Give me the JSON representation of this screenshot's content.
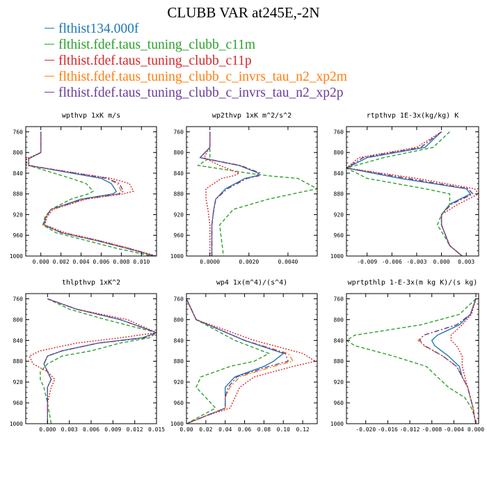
{
  "title": "CLUBB VAR at245E,-2N",
  "legend": [
    {
      "label": "flthist134.000f",
      "color": "#1f77b4"
    },
    {
      "label": "flthist.fdef.taus_tuning_clubb_c11m",
      "color": "#2ca02c"
    },
    {
      "label": "flthist.fdef.taus_tuning_clubb_c11p",
      "color": "#d62728"
    },
    {
      "label": "flthist.fdef.taus_tuning_clubb_c_invrs_tau_n2_xp2m",
      "color": "#ff7f0e"
    },
    {
      "label": "flthist.fdef.taus_tuning_clubb_c_invrs_tau_n2_xp2p",
      "color": "#6a3d9a"
    }
  ],
  "chart_data": [
    {
      "type": "line",
      "title": "wpthvp   1xK m/s",
      "xlim": [
        -0.0015,
        0.0115
      ],
      "ylim": [
        1000,
        750
      ],
      "xticks": [
        0.0,
        0.002,
        0.004,
        0.006,
        0.008,
        0.01
      ],
      "xtick_labels": [
        "0.000",
        "0.002",
        "0.004",
        "0.006",
        "0.008",
        "0.010"
      ],
      "yticks": [
        760,
        800,
        840,
        880,
        920,
        960,
        1000
      ],
      "ytick_labels": [
        "760",
        "800",
        "840",
        "880",
        "920",
        "960",
        "1000"
      ],
      "y": [
        760,
        800,
        812,
        825,
        850,
        860,
        875,
        880,
        890,
        910,
        925,
        940,
        955,
        970,
        985,
        1000
      ],
      "series": [
        {
          "values": [
            0.0,
            0.0,
            -0.0012,
            -0.0012,
            0.006,
            0.007,
            0.0075,
            0.0072,
            0.004,
            0.001,
            0.0005,
            0.0003,
            0.002,
            0.0055,
            0.0085,
            0.0113
          ]
        },
        {
          "values": [
            0.0,
            0.0,
            -0.0012,
            -0.0012,
            0.003,
            0.0045,
            0.0052,
            0.0047,
            0.003,
            0.001,
            0.0004,
            0.0002,
            0.0015,
            0.0045,
            0.0075,
            0.011
          ]
        },
        {
          "values": [
            0.0,
            0.0,
            -0.0014,
            -0.0014,
            0.007,
            0.0088,
            0.0092,
            0.0082,
            0.0045,
            0.0012,
            0.0006,
            0.0004,
            0.0024,
            0.0058,
            0.0088,
            0.0115
          ]
        },
        {
          "values": [
            0.0,
            0.0,
            -0.0012,
            -0.0012,
            0.0065,
            0.0076,
            0.008,
            0.0077,
            0.0042,
            0.001,
            0.0005,
            0.0003,
            0.0021,
            0.0056,
            0.0086,
            0.0113
          ]
        },
        {
          "values": [
            0.0,
            0.0,
            -0.0012,
            -0.0012,
            0.0066,
            0.0078,
            0.0082,
            0.0078,
            0.0043,
            0.001,
            0.0005,
            0.0003,
            0.0021,
            0.0056,
            0.0086,
            0.0113
          ]
        }
      ]
    },
    {
      "type": "line",
      "title": "wp2thvp   1xK m^2/s^2",
      "xlim": [
        -0.0012,
        0.0055
      ],
      "ylim": [
        1000,
        750
      ],
      "xticks": [
        0.0,
        0.002,
        0.004
      ],
      "xtick_labels": [
        "0.0000",
        "0.0020",
        "0.0040"
      ],
      "yticks": [
        760,
        800,
        840,
        880,
        920,
        960,
        1000
      ],
      "ytick_labels": [
        "760",
        "800",
        "840",
        "880",
        "920",
        "960",
        "1000"
      ],
      "y": [
        760,
        790,
        810,
        825,
        840,
        845,
        850,
        870,
        890,
        910,
        940,
        970,
        1000
      ],
      "series": [
        {
          "values": [
            0.0,
            0.0,
            -0.0005,
            0.0015,
            0.0025,
            0.0024,
            0.0018,
            0.0008,
            0.0003,
            0.0002,
            0.0001,
            0.0001,
            0.0001
          ]
        },
        {
          "values": [
            0.0,
            0.0,
            0.0,
            -0.0006,
            0.002,
            0.003,
            0.0045,
            0.0055,
            0.003,
            0.0012,
            0.0005,
            0.0006,
            0.0007
          ]
        },
        {
          "values": [
            0.0,
            0.0,
            -0.0003,
            0.0005,
            0.0015,
            0.0012,
            0.0006,
            -0.0002,
            -0.0002,
            -0.0001,
            0.0,
            0.0,
            0.0
          ]
        },
        {
          "values": [
            0.0,
            0.0,
            -0.0005,
            0.0016,
            0.0026,
            0.0025,
            0.0019,
            0.0009,
            0.0003,
            0.0002,
            0.0001,
            0.0001,
            0.0001
          ]
        },
        {
          "values": [
            0.0,
            0.0,
            -0.0005,
            0.0015,
            0.0026,
            0.0025,
            0.0019,
            0.0009,
            0.0003,
            0.0002,
            0.0001,
            0.0001,
            0.0001
          ]
        }
      ]
    },
    {
      "type": "line",
      "title": "rtpthvp   1E-3x(kg/kg) K",
      "xlim": [
        -0.0115,
        0.0045
      ],
      "ylim": [
        1000,
        750
      ],
      "xticks": [
        -0.009,
        -0.006,
        -0.003,
        0.0,
        0.003
      ],
      "xtick_labels": [
        "-0.009",
        "-0.006",
        "-0.003",
        "0.000",
        "0.003"
      ],
      "yticks": [
        760,
        800,
        840,
        880,
        920,
        960,
        1000
      ],
      "ytick_labels": [
        "760",
        "800",
        "840",
        "880",
        "920",
        "960",
        "1000"
      ],
      "y": [
        760,
        790,
        810,
        830,
        850,
        870,
        880,
        900,
        920,
        940,
        960,
        980,
        1000
      ],
      "series": [
        {
          "values": [
            0.0,
            -0.002,
            -0.009,
            -0.0115,
            -0.005,
            0.003,
            0.0035,
            0.001,
            0.0,
            0.0,
            0.0005,
            0.001,
            0.0025
          ]
        },
        {
          "values": [
            0.001,
            -0.001,
            -0.007,
            -0.0115,
            -0.009,
            -0.002,
            0.001,
            0.001,
            0.0,
            -0.0005,
            0.0003,
            0.001,
            0.0025
          ]
        },
        {
          "values": [
            0.0,
            -0.003,
            -0.01,
            -0.0115,
            -0.003,
            0.004,
            0.0045,
            0.002,
            0.0,
            0.0,
            0.0005,
            0.001,
            0.0025
          ]
        },
        {
          "values": [
            0.0,
            -0.0025,
            -0.0095,
            -0.0115,
            -0.004,
            0.0032,
            0.0038,
            0.0012,
            0.0,
            0.0,
            0.0005,
            0.001,
            0.0025
          ]
        },
        {
          "values": [
            0.0,
            -0.0025,
            -0.0095,
            -0.0115,
            -0.0042,
            0.0032,
            0.0038,
            0.0012,
            0.0,
            0.0,
            0.0005,
            0.001,
            0.0025
          ]
        }
      ]
    },
    {
      "type": "line",
      "title": "thlpthvp   1xK^2",
      "xlim": [
        -0.003,
        0.015
      ],
      "ylim": [
        1000,
        750
      ],
      "xticks": [
        0.0,
        0.003,
        0.006,
        0.009,
        0.012,
        0.015
      ],
      "xtick_labels": [
        "0.000",
        "0.003",
        "0.006",
        "0.009",
        "0.012",
        "0.015"
      ],
      "yticks": [
        760,
        800,
        840,
        880,
        920,
        960,
        1000
      ],
      "ytick_labels": [
        "760",
        "800",
        "840",
        "880",
        "920",
        "960",
        "1000"
      ],
      "y": [
        760,
        780,
        800,
        825,
        835,
        845,
        860,
        870,
        885,
        900,
        915,
        930,
        960,
        1000
      ],
      "series": [
        {
          "values": [
            0.0,
            0.004,
            0.01,
            0.015,
            0.013,
            0.007,
            0.002,
            0.0,
            -0.0005,
            0.0,
            0.0005,
            0.0,
            0.0,
            0.0
          ]
        },
        {
          "values": [
            0.0,
            0.003,
            0.008,
            0.015,
            0.014,
            0.01,
            0.006,
            0.002,
            0.0,
            -0.001,
            -0.001,
            -0.0005,
            0.0,
            0.0005
          ]
        },
        {
          "values": [
            0.0,
            0.004,
            0.011,
            0.015,
            0.01,
            0.004,
            -0.001,
            -0.0025,
            -0.002,
            0.0,
            0.001,
            0.0005,
            0.0,
            0.0
          ]
        },
        {
          "values": [
            0.0,
            0.004,
            0.01,
            0.015,
            0.0135,
            0.007,
            0.002,
            0.0,
            -0.0005,
            0.0,
            0.0005,
            0.0,
            0.0,
            0.0
          ]
        },
        {
          "values": [
            0.0,
            0.004,
            0.01,
            0.015,
            0.0133,
            0.007,
            0.002,
            0.0,
            -0.0005,
            0.0,
            0.0005,
            0.0,
            0.0,
            0.0
          ]
        }
      ]
    },
    {
      "type": "line",
      "title": "wp4   1x(m^4)/(s^4)",
      "xlim": [
        0.0,
        0.135
      ],
      "ylim": [
        1000,
        750
      ],
      "xticks": [
        0.0,
        0.02,
        0.04,
        0.06,
        0.08,
        0.1,
        0.12
      ],
      "xtick_labels": [
        "0.00",
        "0.02",
        "0.04",
        "0.06",
        "0.08",
        "0.10",
        "0.12"
      ],
      "yticks": [
        760,
        800,
        840,
        880,
        920,
        960,
        1000
      ],
      "ytick_labels": [
        "760",
        "800",
        "840",
        "880",
        "920",
        "960",
        "1000"
      ],
      "y": [
        760,
        800,
        840,
        865,
        880,
        890,
        910,
        930,
        950,
        970,
        985,
        1000
      ],
      "series": [
        {
          "values": [
            0.0,
            0.01,
            0.06,
            0.1,
            0.09,
            0.08,
            0.05,
            0.04,
            0.04,
            0.04,
            0.02,
            0.0
          ]
        },
        {
          "values": [
            0.0,
            0.01,
            0.05,
            0.085,
            0.07,
            0.045,
            0.015,
            0.01,
            0.02,
            0.03,
            0.015,
            0.0
          ]
        },
        {
          "values": [
            0.0,
            0.01,
            0.07,
            0.12,
            0.133,
            0.11,
            0.07,
            0.055,
            0.05,
            0.045,
            0.02,
            0.0
          ]
        },
        {
          "values": [
            0.0,
            0.01,
            0.06,
            0.105,
            0.11,
            0.09,
            0.055,
            0.045,
            0.04,
            0.04,
            0.02,
            0.0
          ]
        },
        {
          "values": [
            0.0,
            0.01,
            0.06,
            0.102,
            0.105,
            0.085,
            0.052,
            0.043,
            0.04,
            0.04,
            0.02,
            0.0
          ]
        }
      ]
    },
    {
      "type": "line",
      "title": "wprtpthlp   1-E-3x(m kg K)/(s kg)",
      "xlim": [
        -0.0235,
        0.0005
      ],
      "ylim": [
        1000,
        750
      ],
      "xticks": [
        -0.02,
        -0.016,
        -0.012,
        -0.008,
        -0.004,
        0.0
      ],
      "xtick_labels": [
        "-0.020",
        "-0.016",
        "-0.012",
        "-0.008",
        "-0.004",
        "0.000"
      ],
      "yticks": [
        760,
        800,
        840,
        880,
        920,
        960,
        1000
      ],
      "ytick_labels": [
        "760",
        "800",
        "840",
        "880",
        "920",
        "960",
        "1000"
      ],
      "y": [
        760,
        790,
        810,
        830,
        840,
        850,
        870,
        890,
        910,
        930,
        950,
        970,
        985,
        1000
      ],
      "series": [
        {
          "values": [
            0.0,
            -0.001,
            -0.003,
            -0.007,
            -0.008,
            -0.0075,
            -0.005,
            -0.003,
            -0.0025,
            -0.0015,
            -0.001,
            -0.0005,
            -0.0003,
            0.0
          ]
        },
        {
          "values": [
            0.0,
            -0.003,
            -0.01,
            -0.022,
            -0.0235,
            -0.022,
            -0.015,
            -0.009,
            -0.007,
            -0.005,
            -0.002,
            -0.0008,
            -0.0003,
            0.0
          ]
        },
        {
          "values": [
            0.0,
            -0.0008,
            -0.0025,
            -0.0045,
            -0.0045,
            -0.0035,
            -0.0025,
            -0.0025,
            -0.002,
            -0.0015,
            -0.001,
            -0.0005,
            -0.0003,
            0.0
          ]
        },
        {
          "values": [
            0.0,
            -0.001,
            -0.0035,
            -0.0095,
            -0.0105,
            -0.0095,
            -0.006,
            -0.0035,
            -0.0025,
            -0.0015,
            -0.001,
            -0.0005,
            -0.0003,
            0.0
          ]
        },
        {
          "values": [
            0.0,
            -0.001,
            -0.0035,
            -0.0095,
            -0.0102,
            -0.0093,
            -0.006,
            -0.0035,
            -0.0025,
            -0.0015,
            -0.001,
            -0.0005,
            -0.0003,
            0.0
          ]
        }
      ]
    }
  ]
}
